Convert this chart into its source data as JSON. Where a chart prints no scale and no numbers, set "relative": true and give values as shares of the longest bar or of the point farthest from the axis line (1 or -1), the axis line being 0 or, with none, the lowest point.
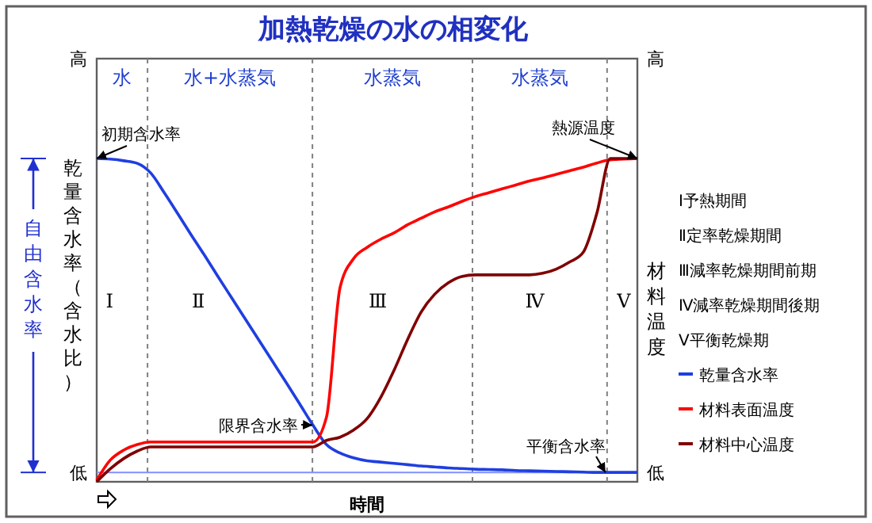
{
  "chart_data": {
    "type": "line",
    "title": "加熱乾燥の水の相変化",
    "xlabel": "時間",
    "ylabel": "乾量含水率（含水比）",
    "y2label": "材料温度",
    "relative": true,
    "ref_lines": [
      {
        "axis": "y",
        "value": 0.029,
        "label": "低",
        "color": "#8090ff"
      }
    ],
    "legend": "right",
    "marker": "none",
    "line_style": "solid",
    "categories": [
      null,
      null,
      null,
      null,
      null,
      null,
      null,
      null,
      null,
      null,
      null,
      null,
      null,
      null,
      null,
      null,
      null,
      null,
      null,
      null,
      null,
      null,
      null,
      null,
      null,
      null,
      null,
      null,
      null,
      null,
      null,
      null,
      null,
      null,
      null,
      null,
      null,
      null,
      null,
      null,
      null
    ],
    "series": [
      {
        "name": "乾量含水率",
        "color": "#1f3fe0",
        "values": [
          1.0,
          0.998,
          0.993,
          0.985,
          0.955,
          0.894,
          0.829,
          0.763,
          0.699,
          0.633,
          0.568,
          0.503,
          0.438,
          0.373,
          0.308,
          0.242,
          0.175,
          0.115,
          0.089,
          0.074,
          0.065,
          0.061,
          0.057,
          0.053,
          0.049,
          0.046,
          0.043,
          0.041,
          0.039,
          0.038,
          0.037,
          0.035,
          0.034,
          0.033,
          0.032,
          0.031,
          0.03,
          0.029,
          0.029,
          0.029,
          0.029
        ]
      },
      {
        "name": "材料表面温度",
        "color": "#ff0000",
        "values": [
          0.005,
          0.067,
          0.098,
          0.115,
          0.123,
          0.123,
          0.123,
          0.123,
          0.123,
          0.123,
          0.123,
          0.123,
          0.123,
          0.123,
          0.123,
          0.123,
          0.123,
          0.2,
          0.6,
          0.69,
          0.725,
          0.75,
          0.77,
          0.795,
          0.815,
          0.835,
          0.85,
          0.867,
          0.882,
          0.894,
          0.906,
          0.918,
          0.93,
          0.94,
          0.951,
          0.962,
          0.973,
          0.986,
          0.996,
          0.998,
          1.0
        ]
      },
      {
        "name": "材料中心温度",
        "color": "#800000",
        "values": [
          0,
          0.04,
          0.072,
          0.095,
          0.108,
          0.108,
          0.108,
          0.108,
          0.108,
          0.108,
          0.108,
          0.108,
          0.108,
          0.108,
          0.108,
          0.108,
          0.108,
          0.128,
          0.138,
          0.16,
          0.195,
          0.26,
          0.345,
          0.44,
          0.525,
          0.58,
          0.615,
          0.635,
          0.64,
          0.64,
          0.64,
          0.64,
          0.64,
          0.645,
          0.658,
          0.68,
          0.71,
          0.83,
          1.0,
          1.0,
          1.0
        ]
      }
    ],
    "annotations": [
      "自由含水率",
      "Ⅰ予熱期間",
      "Ⅱ定率乾燥期間",
      "Ⅲ減率乾燥期間前期",
      "Ⅳ減率乾燥期間後期",
      "Ⅴ平衡乾燥期",
      "水",
      "水+水蒸気",
      "水蒸気",
      "水蒸気",
      "Ⅰ",
      "Ⅱ",
      "Ⅲ",
      "Ⅳ",
      "Ⅴ",
      "高",
      {
        "text": "初期含水率",
        "y": 1.0
      },
      "限界含水率",
      {
        "text": "平衡含水率",
        "y": 0.029
      },
      {
        "text": "熱源温度",
        "y": 1.0
      }
    ]
  }
}
